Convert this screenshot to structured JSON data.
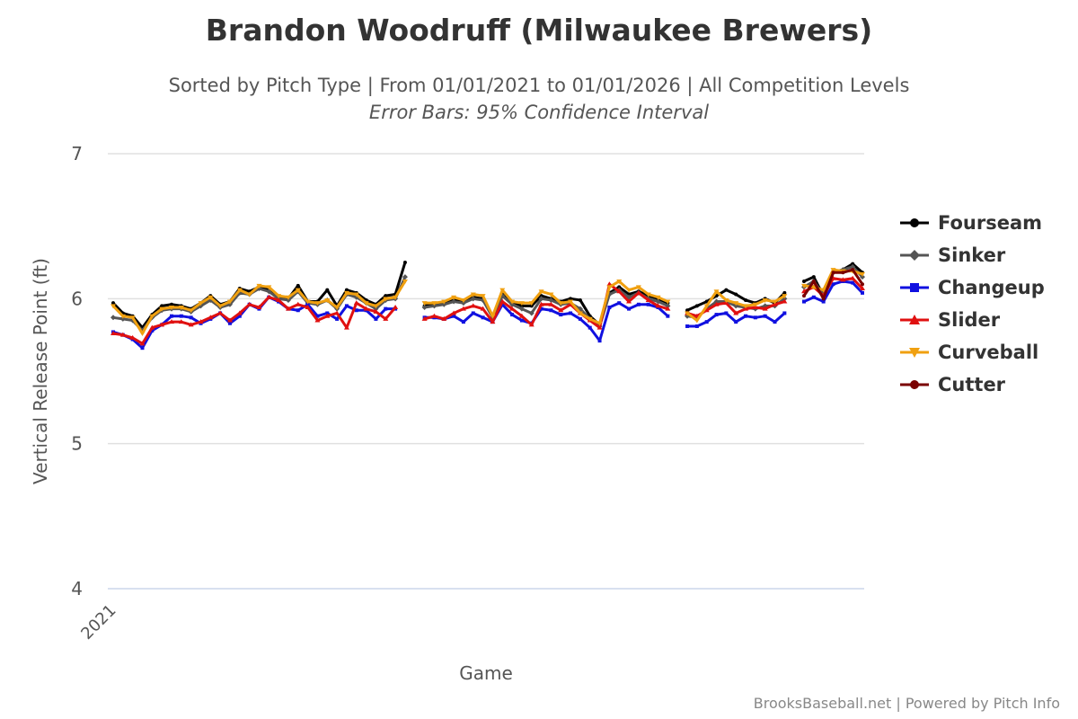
{
  "title": "Brandon Woodruff (Milwaukee Brewers)",
  "subtitle": "Sorted by Pitch Type | From 01/01/2021 to 01/01/2026 | All Competition Levels",
  "subtitle2": "Error Bars: 95% Confidence Interval",
  "credits": "BrooksBaseball.net | Powered by Pitch Info",
  "chart_data": {
    "type": "line",
    "xlabel": "Game",
    "ylabel": "Vertical Release Point (ft)",
    "ylim": [
      4,
      7
    ],
    "yticks": [
      "4",
      "5",
      "6",
      "7"
    ],
    "xticks": [
      "2021"
    ],
    "grid": true,
    "legend": "right",
    "series": [
      {
        "name": "Fourseam",
        "color": "#000000",
        "marker": "circle",
        "values": [
          5.97,
          5.9,
          5.88,
          5.8,
          5.89,
          5.95,
          5.96,
          5.95,
          5.93,
          5.97,
          6.02,
          5.96,
          5.98,
          6.07,
          6.05,
          6.08,
          6.06,
          6.01,
          6.0,
          6.09,
          5.98,
          5.98,
          6.06,
          5.95,
          6.06,
          6.04,
          5.99,
          5.96,
          6.02,
          6.03,
          6.25,
          null,
          5.95,
          5.96,
          5.97,
          5.99,
          5.98,
          6.01,
          6.0,
          5.88,
          6.04,
          5.98,
          5.95,
          5.95,
          6.02,
          6.0,
          5.98,
          6.0,
          5.99,
          5.88,
          5.82,
          6.04,
          6.08,
          6.03,
          6.05,
          6.02,
          6.0,
          5.97,
          null,
          5.92,
          5.95,
          5.98,
          6.02,
          6.06,
          6.03,
          5.99,
          5.97,
          6.0,
          5.97,
          6.04,
          null,
          6.12,
          6.15,
          6.02,
          6.18,
          6.2,
          6.24,
          6.18
        ]
      },
      {
        "name": "Sinker",
        "color": "#555555",
        "marker": "diamond",
        "values": [
          5.87,
          5.86,
          5.85,
          5.78,
          5.87,
          5.92,
          5.93,
          5.93,
          5.91,
          5.95,
          5.99,
          5.94,
          5.96,
          6.04,
          6.03,
          6.07,
          6.05,
          6.0,
          5.99,
          6.05,
          5.97,
          5.96,
          5.99,
          5.93,
          6.03,
          6.01,
          5.97,
          5.93,
          5.99,
          6.0,
          6.15,
          null,
          5.94,
          5.95,
          5.96,
          5.98,
          5.97,
          6.0,
          5.99,
          5.87,
          6.02,
          5.96,
          5.93,
          5.9,
          6.0,
          5.99,
          5.96,
          5.97,
          5.93,
          5.86,
          5.81,
          6.03,
          6.06,
          6.01,
          6.04,
          6.0,
          5.98,
          5.95,
          null,
          5.88,
          5.87,
          5.93,
          5.98,
          5.98,
          5.95,
          5.94,
          5.93,
          5.95,
          5.95,
          6.0,
          null,
          6.08,
          6.12,
          6.03,
          6.18,
          6.2,
          6.22,
          6.15
        ]
      },
      {
        "name": "Changeup",
        "color": "#1010e0",
        "marker": "square",
        "values": [
          5.77,
          5.75,
          5.72,
          5.66,
          5.78,
          5.82,
          5.88,
          5.88,
          5.87,
          5.83,
          5.86,
          5.9,
          5.83,
          5.88,
          5.96,
          5.93,
          6.01,
          5.98,
          5.93,
          5.92,
          5.96,
          5.88,
          5.9,
          5.86,
          5.95,
          5.92,
          5.92,
          5.86,
          5.93,
          5.93,
          null,
          null,
          5.87,
          5.87,
          5.86,
          5.88,
          5.84,
          5.9,
          5.87,
          5.84,
          5.96,
          5.89,
          5.85,
          5.83,
          5.93,
          5.92,
          5.89,
          5.9,
          5.86,
          5.8,
          5.71,
          5.94,
          5.97,
          5.93,
          5.96,
          5.96,
          5.94,
          5.88,
          null,
          5.81,
          5.81,
          5.84,
          5.89,
          5.9,
          5.84,
          5.88,
          5.87,
          5.88,
          5.84,
          5.9,
          null,
          5.98,
          6.01,
          5.98,
          6.1,
          6.12,
          6.11,
          6.04
        ]
      },
      {
        "name": "Slider",
        "color": "#e01010",
        "marker": "triangle",
        "values": [
          5.76,
          5.75,
          5.73,
          5.69,
          5.8,
          5.82,
          5.84,
          5.84,
          5.82,
          5.84,
          5.87,
          5.9,
          5.85,
          5.9,
          5.96,
          5.94,
          6.01,
          5.99,
          5.93,
          5.96,
          5.94,
          5.85,
          5.88,
          5.9,
          5.8,
          5.97,
          5.93,
          5.91,
          5.86,
          5.94,
          null,
          null,
          5.86,
          5.88,
          5.86,
          5.9,
          5.93,
          5.95,
          5.93,
          5.84,
          5.98,
          5.93,
          5.88,
          5.82,
          5.96,
          5.96,
          5.92,
          5.96,
          5.9,
          5.85,
          5.8,
          6.1,
          6.05,
          5.98,
          6.04,
          5.99,
          5.95,
          5.93,
          null,
          5.9,
          5.88,
          5.92,
          5.96,
          5.97,
          5.9,
          5.93,
          5.94,
          5.93,
          5.96,
          5.98,
          null,
          6.05,
          6.08,
          6.02,
          6.14,
          6.13,
          6.14,
          6.07
        ]
      },
      {
        "name": "Curveball",
        "color": "#f0a010",
        "marker": "triangle-down",
        "values": [
          5.95,
          5.88,
          5.87,
          5.76,
          5.88,
          5.93,
          5.94,
          5.94,
          5.92,
          5.97,
          6.01,
          5.95,
          5.98,
          6.06,
          6.03,
          6.09,
          6.08,
          6.02,
          6.01,
          6.06,
          5.98,
          5.97,
          5.99,
          5.94,
          6.04,
          6.03,
          5.97,
          5.95,
          6.0,
          6.01,
          6.12,
          null,
          5.97,
          5.97,
          5.98,
          6.01,
          5.99,
          6.03,
          6.02,
          5.88,
          6.06,
          5.98,
          5.97,
          5.97,
          6.05,
          6.03,
          5.97,
          5.98,
          5.9,
          5.86,
          5.83,
          6.08,
          6.12,
          6.06,
          6.08,
          6.03,
          6.01,
          5.98,
          null,
          5.9,
          5.85,
          5.95,
          6.05,
          5.99,
          5.97,
          5.95,
          5.96,
          5.99,
          5.98,
          6.02,
          null,
          6.09,
          6.08,
          6.06,
          6.2,
          6.19,
          6.19,
          6.17
        ]
      },
      {
        "name": "Cutter",
        "color": "#7a0000",
        "marker": "circle",
        "values": [
          null,
          null,
          null,
          null,
          null,
          null,
          null,
          null,
          null,
          null,
          null,
          null,
          null,
          null,
          null,
          null,
          null,
          null,
          null,
          null,
          null,
          null,
          null,
          null,
          null,
          null,
          null,
          null,
          null,
          null,
          null,
          null,
          null,
          null,
          null,
          null,
          null,
          null,
          null,
          null,
          null,
          null,
          null,
          null,
          null,
          null,
          null,
          null,
          null,
          null,
          null,
          null,
          null,
          null,
          null,
          null,
          null,
          null,
          null,
          null,
          null,
          null,
          null,
          null,
          null,
          null,
          null,
          null,
          null,
          null,
          null,
          6.02,
          6.12,
          6.0,
          6.18,
          6.18,
          6.2,
          6.1
        ]
      }
    ]
  }
}
